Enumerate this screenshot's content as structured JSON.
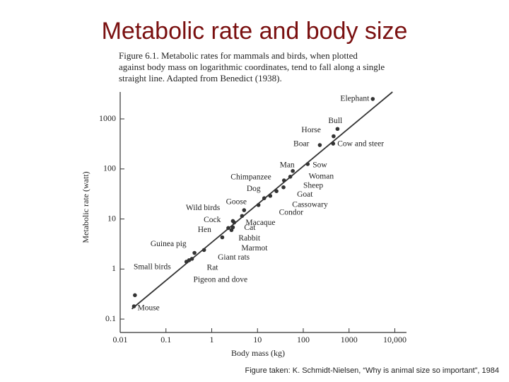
{
  "chart_data": {
    "type": "scatter",
    "title": "Metabolic rate and body size",
    "caption_lines": [
      "Figure 6.1. Metabolic rates for mammals and birds, when plotted",
      "against body mass on logarithmic coordinates, tend to fall along a single",
      "straight line. Adapted from Benedict (1938)."
    ],
    "source": "Figure taken: K. Schmidt-Nielsen, “Why is animal size so important”, 1984",
    "x_label": "Body mass (kg)",
    "y_label": "Metabolic rate (watt)",
    "xscale": "log",
    "yscale": "log",
    "grid": false,
    "color": "#333333",
    "xlim": [
      0.01,
      18000
    ],
    "ylim": [
      0.054,
      3450
    ],
    "xticks": [
      0.01,
      0.1,
      1,
      10,
      100,
      1000,
      {
        "value": 10000,
        "label": "10,000"
      }
    ],
    "yticks": [
      0.1,
      1,
      10,
      100,
      1000
    ],
    "point_labels": [
      "Elephant",
      "Bull",
      "Horse",
      "Boar",
      "Cow and steer",
      "Man",
      "Sow",
      "Woman",
      "Chimpanzee",
      "Sheep",
      "Goat",
      "Dog",
      "Cassowary",
      "Condor",
      "Goose",
      "Wild birds",
      "Macaque",
      "Cock",
      "Hen",
      "Cat",
      "Rabbit",
      "Marmot",
      "Guinea pig",
      "Giant rats",
      "Rat",
      "Small birds",
      "Pigeon and dove",
      null,
      "Mouse"
    ],
    "x": [
      3300,
      560,
      460,
      230,
      450,
      59,
      125,
      52,
      38,
      37,
      26,
      14,
      19,
      10.5,
      5.1,
      3.1,
      4.6,
      2.9,
      2.3,
      2.9,
      2.7,
      1.7,
      0.68,
      0.42,
      0.37,
      0.28,
      0.32,
      0.021,
      0.02
    ],
    "values": [
      2500,
      630,
      450,
      300,
      320,
      91,
      125,
      70,
      59,
      43,
      36,
      26,
      29,
      19,
      15,
      8.5,
      11.5,
      9.1,
      6.6,
      6.8,
      6.0,
      4.3,
      2.4,
      2.1,
      1.6,
      1.4,
      1.5,
      0.3,
      0.18
    ],
    "fit_line": {
      "x": [
        0.018,
        8900
      ],
      "values": [
        0.16,
        3450
      ]
    }
  }
}
